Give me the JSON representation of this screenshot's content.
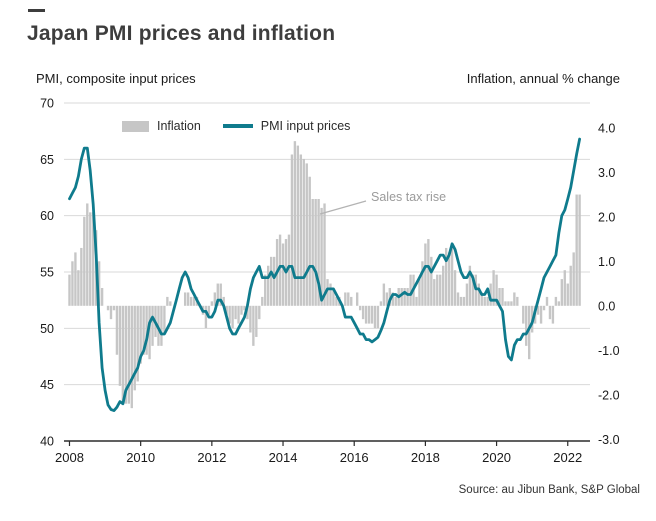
{
  "header": {
    "title": "Japan PMI prices and inflation"
  },
  "axes": {
    "left_title": "PMI, composite input prices",
    "right_title": "Inflation, annual % change",
    "left_ticks": [
      70,
      65,
      60,
      55,
      50,
      45,
      40
    ],
    "right_ticks": [
      "4.0",
      "3.0",
      "2.0",
      "1.0",
      "0.0",
      "-1.0",
      "-2.0",
      "-3.0"
    ],
    "x_labels": [
      "2008",
      "2010",
      "2012",
      "2014",
      "2016",
      "2018",
      "2020",
      "2022"
    ]
  },
  "legend": {
    "items": [
      {
        "label": "Inflation",
        "swatch_color": "#c6c6c6",
        "type": "bar"
      },
      {
        "label": "PMI input prices",
        "swatch_color": "#0f7b8d",
        "type": "line"
      }
    ]
  },
  "annotation": {
    "text": "Sales tax rise"
  },
  "source": {
    "text": "Source: au Jibun Bank, S&P Global"
  },
  "colors": {
    "bars": "#c6c6c6",
    "line": "#0f7b8d",
    "gridline": "#d9d9d9",
    "axis": "#2b2b2b"
  },
  "chart_data": {
    "type": "line+bar",
    "title": "Japan PMI prices and inflation",
    "x_start": "2008-01",
    "x_freq": "monthly",
    "x_end": "2022-05",
    "x_tick_labels": [
      "2008",
      "2010",
      "2012",
      "2014",
      "2016",
      "2018",
      "2020",
      "2022"
    ],
    "left_axis": {
      "label": "PMI, composite input prices",
      "range": [
        40,
        70
      ],
      "ticks": [
        70,
        65,
        60,
        55,
        50,
        45,
        40
      ]
    },
    "right_axis": {
      "label": "Inflation, annual % change",
      "range": [
        -3.0,
        4.0
      ],
      "ticks": [
        "4.0",
        "3.0",
        "2.0",
        "1.0",
        "0.0",
        "-1.0",
        "-2.0",
        "-3.0"
      ]
    },
    "annotations": [
      {
        "text": "Sales tax rise",
        "points_to": "2014 sales-tax inflation spike"
      }
    ],
    "legend_position": "top-inside",
    "grid": "horizontal",
    "series": [
      {
        "name": "Inflation",
        "type": "bar",
        "axis": "right",
        "color": "#c6c6c6",
        "values": [
          0.7,
          1.0,
          1.2,
          0.8,
          1.3,
          2.0,
          2.3,
          2.1,
          2.1,
          1.7,
          1.0,
          0.4,
          0.0,
          -0.1,
          -0.3,
          -0.1,
          -1.1,
          -1.8,
          -2.2,
          -2.2,
          -2.2,
          -2.3,
          -1.9,
          -1.7,
          -1.3,
          -1.1,
          -1.1,
          -1.2,
          -0.9,
          -0.7,
          -0.9,
          -0.9,
          -0.6,
          0.2,
          0.1,
          0.0,
          0.0,
          0.0,
          0.0,
          0.3,
          0.3,
          0.2,
          0.2,
          0.2,
          0.0,
          -0.2,
          -0.5,
          -0.2,
          0.1,
          0.3,
          0.5,
          0.5,
          0.2,
          -0.2,
          -0.4,
          -0.5,
          -0.3,
          -0.4,
          -0.2,
          -0.1,
          -0.3,
          -0.6,
          -0.9,
          -0.7,
          -0.3,
          0.2,
          0.7,
          0.9,
          1.1,
          1.1,
          1.5,
          1.6,
          1.4,
          1.5,
          1.6,
          3.4,
          3.7,
          3.6,
          3.4,
          3.3,
          3.2,
          2.9,
          2.4,
          2.4,
          2.4,
          2.2,
          2.3,
          0.6,
          0.5,
          0.4,
          0.2,
          0.2,
          0.0,
          0.3,
          0.3,
          0.2,
          0.0,
          0.3,
          -0.1,
          -0.3,
          -0.4,
          -0.4,
          -0.4,
          -0.5,
          -0.5,
          0.1,
          0.5,
          0.3,
          0.4,
          0.3,
          0.2,
          0.4,
          0.4,
          0.4,
          0.4,
          0.7,
          0.7,
          0.2,
          0.6,
          1.0,
          1.4,
          1.5,
          1.1,
          0.6,
          0.7,
          0.7,
          0.9,
          1.3,
          1.2,
          1.4,
          0.8,
          0.3,
          0.2,
          0.2,
          0.5,
          0.9,
          0.7,
          0.7,
          0.5,
          0.3,
          0.2,
          0.2,
          0.5,
          0.8,
          0.7,
          0.4,
          0.4,
          0.1,
          0.1,
          0.1,
          0.3,
          0.2,
          0.0,
          -0.4,
          -0.9,
          -1.2,
          -0.6,
          -0.4,
          -0.2,
          -0.4,
          -0.1,
          0.2,
          -0.3,
          -0.4,
          0.2,
          0.1,
          0.6,
          0.8,
          0.5,
          0.9,
          1.2,
          2.5,
          2.5
        ]
      },
      {
        "name": "PMI input prices",
        "type": "line",
        "axis": "left",
        "color": "#0f7b8d",
        "values": [
          61.5,
          62.0,
          62.5,
          63.5,
          65.0,
          66.0,
          66.0,
          64.0,
          61.0,
          56.5,
          50.5,
          46.5,
          44.5,
          43.2,
          42.8,
          42.7,
          43.0,
          43.5,
          43.3,
          44.5,
          45.0,
          45.5,
          46.0,
          46.5,
          47.5,
          48.0,
          49.0,
          50.5,
          51.0,
          50.5,
          50.0,
          49.5,
          49.5,
          50.0,
          50.5,
          51.5,
          52.5,
          53.5,
          54.5,
          55.0,
          54.5,
          53.5,
          53.0,
          52.5,
          52.0,
          51.5,
          51.5,
          51.0,
          51.0,
          51.5,
          52.5,
          52.5,
          52.0,
          51.0,
          50.0,
          49.5,
          49.5,
          50.0,
          50.5,
          51.0,
          52.0,
          53.5,
          54.5,
          55.0,
          55.5,
          54.5,
          54.5,
          54.5,
          55.0,
          54.5,
          55.0,
          55.5,
          55.5,
          55.0,
          55.5,
          55.5,
          54.5,
          54.5,
          54.5,
          54.5,
          55.0,
          55.5,
          55.5,
          55.0,
          54.0,
          52.5,
          53.0,
          53.5,
          53.5,
          53.5,
          53.0,
          52.5,
          52.0,
          51.0,
          51.0,
          51.0,
          50.5,
          50.0,
          49.5,
          49.5,
          49.0,
          49.0,
          48.8,
          49.0,
          49.2,
          49.8,
          50.5,
          51.5,
          52.5,
          53.0,
          53.0,
          52.8,
          53.0,
          53.2,
          53.0,
          53.0,
          53.5,
          54.0,
          54.5,
          55.0,
          55.5,
          55.5,
          55.0,
          55.5,
          56.0,
          56.5,
          56.5,
          56.0,
          56.5,
          57.5,
          57.0,
          56.0,
          55.0,
          54.5,
          54.5,
          55.0,
          54.5,
          53.5,
          53.5,
          53.0,
          53.0,
          53.5,
          52.5,
          52.5,
          52.5,
          52.0,
          51.5,
          49.0,
          47.5,
          47.2,
          48.5,
          49.0,
          49.0,
          49.5,
          49.5,
          50.0,
          50.5,
          51.5,
          52.5,
          53.5,
          54.5,
          55.0,
          55.5,
          56.0,
          56.5,
          58.5,
          60.0,
          60.5,
          61.5,
          62.5,
          64.0,
          65.5,
          66.8
        ]
      }
    ],
    "source": "Source: au Jibun Bank, S&P Global"
  }
}
